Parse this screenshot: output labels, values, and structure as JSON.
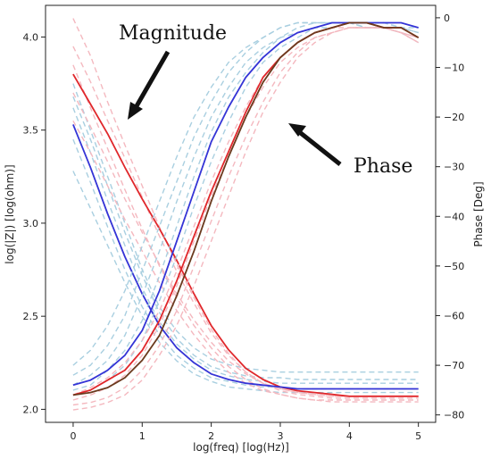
{
  "chart_data": {
    "type": "line",
    "xlabel": "log(freq) [log(Hz)]",
    "ylabel_left": "log(|Z|) [log(ohm)]",
    "ylabel_right": "Phase [Deg]",
    "xlim": [
      -0.4,
      5.25
    ],
    "ylim_left": [
      1.93,
      4.17
    ],
    "ylim_right": [
      -81.5,
      2.5
    ],
    "x_ticks": [
      0,
      1,
      2,
      3,
      4,
      5
    ],
    "y_ticks_left": [
      2.0,
      2.5,
      3.0,
      3.5,
      4.0
    ],
    "y_ticks_right": [
      0,
      -10,
      -20,
      -30,
      -40,
      -50,
      -60,
      -70,
      -80
    ],
    "annotations": [
      {
        "text": "Magnitude",
        "anchor": "top-left"
      },
      {
        "text": "Phase",
        "anchor": "middle-right"
      }
    ],
    "colors": {
      "solid_red": "#e0272b",
      "solid_blue": "#3434d6",
      "solid_brown": "#6b3a1e",
      "dashed_blue": "#a9cfe0",
      "dashed_pink": "#f4b8bf"
    },
    "x": [
      0,
      0.25,
      0.5,
      0.75,
      1,
      1.25,
      1.5,
      1.75,
      2,
      2.25,
      2.5,
      2.75,
      3,
      3.25,
      3.5,
      3.75,
      4,
      4.25,
      4.5,
      4.75,
      5
    ],
    "magnitude_series": [
      {
        "color": "solid_red",
        "style": "solid",
        "values": [
          3.8,
          3.64,
          3.48,
          3.3,
          3.13,
          2.97,
          2.8,
          2.62,
          2.45,
          2.32,
          2.22,
          2.16,
          2.12,
          2.1,
          2.09,
          2.08,
          2.07,
          2.07,
          2.07,
          2.07,
          2.07
        ]
      },
      {
        "color": "solid_blue",
        "style": "solid",
        "values": [
          3.53,
          3.3,
          3.05,
          2.82,
          2.62,
          2.45,
          2.33,
          2.25,
          2.19,
          2.16,
          2.14,
          2.13,
          2.12,
          2.11,
          2.11,
          2.11,
          2.11,
          2.11,
          2.11,
          2.11,
          2.11
        ]
      },
      {
        "color": "dashed_blue",
        "style": "dashed",
        "values": [
          3.75,
          3.5,
          3.25,
          3.0,
          2.75,
          2.55,
          2.42,
          2.33,
          2.27,
          2.24,
          2.22,
          2.21,
          2.2,
          2.2,
          2.2,
          2.2,
          2.2,
          2.2,
          2.2,
          2.2,
          2.2
        ]
      },
      {
        "color": "dashed_blue",
        "style": "dashed",
        "values": [
          3.68,
          3.45,
          3.2,
          2.95,
          2.72,
          2.52,
          2.38,
          2.29,
          2.23,
          2.2,
          2.18,
          2.17,
          2.17,
          2.16,
          2.16,
          2.16,
          2.16,
          2.16,
          2.16,
          2.16,
          2.16
        ]
      },
      {
        "color": "dashed_blue",
        "style": "dashed",
        "values": [
          3.62,
          3.38,
          3.12,
          2.88,
          2.65,
          2.47,
          2.35,
          2.27,
          2.21,
          2.18,
          2.16,
          2.15,
          2.14,
          2.14,
          2.14,
          2.14,
          2.14,
          2.14,
          2.14,
          2.14,
          2.14
        ]
      },
      {
        "color": "dashed_blue",
        "style": "dashed",
        "values": [
          3.45,
          3.22,
          2.98,
          2.75,
          2.55,
          2.4,
          2.29,
          2.22,
          2.17,
          2.15,
          2.13,
          2.12,
          2.12,
          2.11,
          2.11,
          2.11,
          2.11,
          2.11,
          2.11,
          2.11,
          2.11
        ]
      },
      {
        "color": "dashed_blue",
        "style": "dashed",
        "values": [
          3.28,
          3.08,
          2.88,
          2.68,
          2.5,
          2.36,
          2.26,
          2.19,
          2.15,
          2.12,
          2.11,
          2.1,
          2.09,
          2.09,
          2.09,
          2.09,
          2.09,
          2.09,
          2.09,
          2.09,
          2.09
        ]
      },
      {
        "color": "dashed_pink",
        "style": "dashed",
        "values": [
          4.1,
          3.9,
          3.65,
          3.42,
          3.2,
          2.98,
          2.78,
          2.6,
          2.43,
          2.3,
          2.2,
          2.14,
          2.1,
          2.08,
          2.07,
          2.06,
          2.06,
          2.06,
          2.06,
          2.06,
          2.06
        ]
      },
      {
        "color": "dashed_pink",
        "style": "dashed",
        "values": [
          3.95,
          3.76,
          3.55,
          3.35,
          3.14,
          2.93,
          2.74,
          2.57,
          2.41,
          2.29,
          2.2,
          2.14,
          2.11,
          2.09,
          2.08,
          2.07,
          2.07,
          2.07,
          2.07,
          2.07,
          2.07
        ]
      },
      {
        "color": "dashed_pink",
        "style": "dashed",
        "values": [
          3.7,
          3.52,
          3.33,
          3.13,
          2.95,
          2.78,
          2.62,
          2.48,
          2.36,
          2.26,
          2.19,
          2.14,
          2.11,
          2.09,
          2.08,
          2.07,
          2.07,
          2.07,
          2.07,
          2.07,
          2.07
        ]
      },
      {
        "color": "dashed_pink",
        "style": "dashed",
        "values": [
          3.55,
          3.38,
          3.2,
          3.02,
          2.85,
          2.68,
          2.53,
          2.4,
          2.29,
          2.2,
          2.14,
          2.1,
          2.08,
          2.06,
          2.05,
          2.05,
          2.05,
          2.05,
          2.05,
          2.05,
          2.05
        ]
      },
      {
        "color": "dashed_pink",
        "style": "dashed",
        "values": [
          3.85,
          3.62,
          3.4,
          3.18,
          2.97,
          2.77,
          2.6,
          2.45,
          2.33,
          2.23,
          2.16,
          2.11,
          2.08,
          2.06,
          2.05,
          2.04,
          2.04,
          2.04,
          2.04,
          2.04,
          2.04
        ]
      }
    ],
    "phase_series": [
      {
        "color": "solid_red",
        "style": "solid",
        "values": [
          -76,
          -75,
          -73,
          -71,
          -67,
          -61,
          -53,
          -44,
          -35,
          -27,
          -19,
          -12,
          -8,
          -5,
          -3,
          -2,
          -1,
          -1,
          -2,
          -2,
          -4
        ]
      },
      {
        "color": "solid_blue",
        "style": "solid",
        "values": [
          -74,
          -73,
          -71,
          -68,
          -63,
          -55,
          -45,
          -35,
          -25,
          -18,
          -12,
          -8,
          -5,
          -3,
          -2,
          -1,
          -1,
          -1,
          -1,
          -1,
          -2
        ]
      },
      {
        "color": "solid_brown",
        "style": "solid",
        "values": [
          -76,
          -75.5,
          -74.5,
          -72.5,
          -69,
          -64,
          -56,
          -47,
          -37,
          -28,
          -20,
          -13,
          -8,
          -5,
          -3,
          -2,
          -1,
          -1,
          -2,
          -2,
          -4
        ]
      },
      {
        "color": "dashed_blue",
        "style": "dashed",
        "values": [
          -72,
          -70,
          -66,
          -60,
          -51,
          -42,
          -33,
          -24,
          -17,
          -11,
          -7,
          -4,
          -2,
          -1,
          -1,
          -1,
          -1,
          -1,
          -1,
          -2,
          -3
        ]
      },
      {
        "color": "dashed_blue",
        "style": "dashed",
        "values": [
          -74,
          -72,
          -69,
          -64,
          -56,
          -47,
          -37,
          -28,
          -20,
          -14,
          -9,
          -6,
          -4,
          -2,
          -1,
          -1,
          -1,
          -1,
          -2,
          -2,
          -3
        ]
      },
      {
        "color": "dashed_blue",
        "style": "dashed",
        "values": [
          -75,
          -74,
          -71,
          -67,
          -61,
          -52,
          -42,
          -32,
          -23,
          -16,
          -11,
          -7,
          -4,
          -3,
          -2,
          -1,
          -1,
          -2,
          -2,
          -3,
          -4
        ]
      },
      {
        "color": "dashed_blue",
        "style": "dashed",
        "values": [
          -70,
          -67,
          -62,
          -55,
          -46,
          -37,
          -28,
          -20,
          -14,
          -9,
          -6,
          -4,
          -2,
          -1,
          -1,
          -1,
          -1,
          -1,
          -1,
          -2,
          -2
        ]
      },
      {
        "color": "dashed_blue",
        "style": "dashed",
        "values": [
          -76,
          -75,
          -73,
          -70,
          -65,
          -57,
          -48,
          -38,
          -29,
          -21,
          -14,
          -9,
          -6,
          -4,
          -2,
          -2,
          -1,
          -2,
          -2,
          -3,
          -5
        ]
      },
      {
        "color": "dashed_pink",
        "style": "dashed",
        "values": [
          -78,
          -77.5,
          -76.5,
          -74.5,
          -71,
          -66,
          -59,
          -50,
          -41,
          -32,
          -24,
          -17,
          -11,
          -7,
          -4,
          -3,
          -2,
          -2,
          -2,
          -3,
          -5
        ]
      },
      {
        "color": "dashed_pink",
        "style": "dashed",
        "values": [
          -77,
          -76,
          -74.5,
          -72,
          -68,
          -62,
          -54,
          -45,
          -36,
          -28,
          -20,
          -14,
          -9,
          -6,
          -4,
          -3,
          -2,
          -2,
          -2,
          -3,
          -4
        ]
      },
      {
        "color": "dashed_pink",
        "style": "dashed",
        "values": [
          -79,
          -78.5,
          -77.5,
          -76,
          -73,
          -68,
          -62,
          -54,
          -45,
          -36,
          -27,
          -19,
          -13,
          -8,
          -5,
          -3,
          -2,
          -2,
          -2,
          -3,
          -5
        ]
      },
      {
        "color": "dashed_pink",
        "style": "dashed",
        "values": [
          -76,
          -74.5,
          -72.5,
          -69.5,
          -65,
          -59,
          -51,
          -42,
          -33,
          -25,
          -18,
          -12,
          -8,
          -5,
          -3,
          -2,
          -2,
          -2,
          -2,
          -3,
          -4
        ]
      }
    ]
  }
}
